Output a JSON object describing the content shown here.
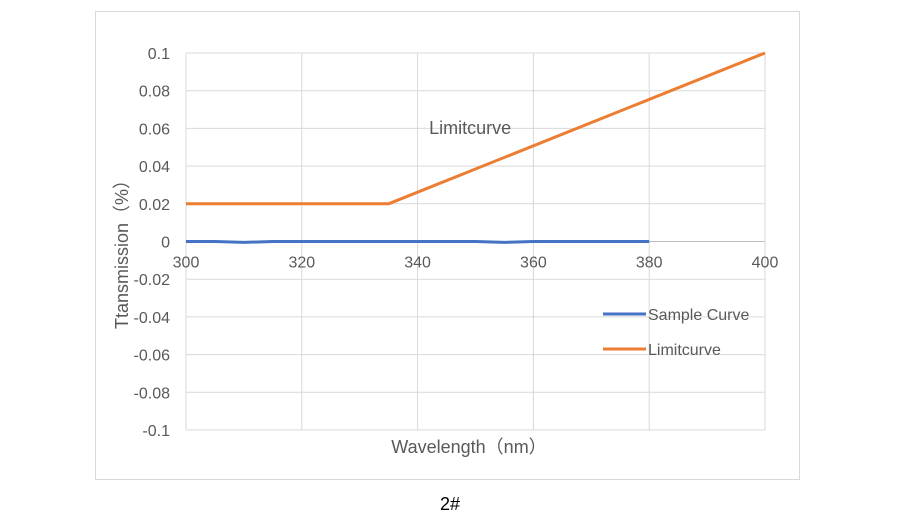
{
  "caption": "2#",
  "chart_data": {
    "type": "line",
    "title": "",
    "xlabel": "Wavelength（nm）",
    "ylabel": "Ttansmission（%）",
    "xlim": [
      300,
      400
    ],
    "ylim": [
      -0.1,
      0.1
    ],
    "x_ticks": [
      "300",
      "320",
      "340",
      "360",
      "380",
      "400"
    ],
    "y_ticks": [
      "0.1",
      "0.08",
      "0.06",
      "0.04",
      "0.02",
      "0",
      "-0.02",
      "-0.04",
      "-0.06",
      "-0.08",
      "-0.1"
    ],
    "grid": true,
    "legend_position": "right",
    "series": [
      {
        "name": "Sample Curve",
        "color": "#4472c4",
        "points": [
          [
            300,
            0
          ],
          [
            305,
            0
          ],
          [
            310,
            -0.0005
          ],
          [
            315,
            0
          ],
          [
            320,
            0
          ],
          [
            330,
            0
          ],
          [
            340,
            0
          ],
          [
            350,
            0
          ],
          [
            355,
            -0.0005
          ],
          [
            360,
            0
          ],
          [
            370,
            0
          ],
          [
            380,
            0
          ]
        ]
      },
      {
        "name": "Limitcurve",
        "color": "#ed7d31",
        "points": [
          [
            300,
            0.02
          ],
          [
            335,
            0.02
          ],
          [
            400,
            0.1
          ]
        ]
      }
    ],
    "annotations": [
      {
        "text": "Limitcurve",
        "x": 342,
        "y": 0.057
      }
    ]
  }
}
